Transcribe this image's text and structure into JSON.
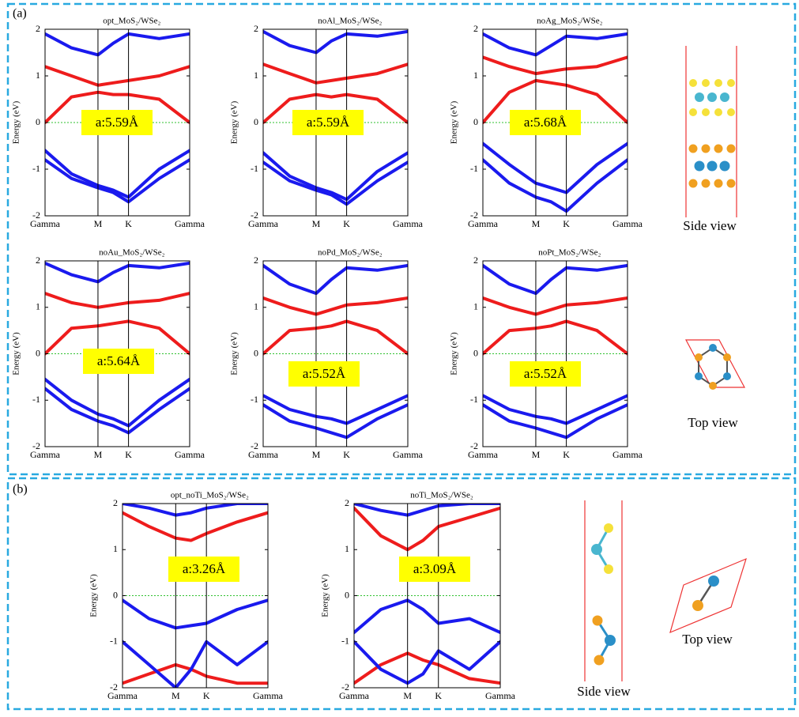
{
  "panel_labels": [
    "(a)",
    "(b)"
  ],
  "structure_labels": [
    "Side view",
    "Top view",
    "Side view",
    "Top view"
  ],
  "chart_data": [
    {
      "type": "line",
      "title": "opt_MoS₂/WSe₂",
      "ylabel": "Energy (eV)",
      "annotation": "a:5.59Å",
      "hline": 0,
      "x": [
        0,
        0.289,
        0.577,
        0.744,
        0.91,
        1.244,
        1.577
      ],
      "xlim": [
        0,
        1.577
      ],
      "ylim": [
        -2,
        2
      ],
      "yticks": [
        -2,
        -1,
        0,
        1,
        2
      ],
      "xticks": [
        {
          "value": 0,
          "label": "Gamma"
        },
        {
          "value": 0.577,
          "label": "M"
        },
        {
          "value": 0.91,
          "label": "K"
        },
        {
          "value": 1.577,
          "label": "Gamma"
        }
      ],
      "series": [
        {
          "color": "#ee1c1c",
          "values": [
            0,
            0.55,
            0.65,
            0.6,
            0.6,
            0.5,
            0
          ]
        },
        {
          "color": "#ee1c1c",
          "values": [
            1.2,
            1.0,
            0.8,
            0.85,
            0.9,
            1.0,
            1.2
          ]
        },
        {
          "color": "#1a1aee",
          "values": [
            1.9,
            1.6,
            1.45,
            1.7,
            1.9,
            1.8,
            1.9
          ]
        },
        {
          "color": "#1a1aee",
          "values": [
            -0.6,
            -1.1,
            -1.35,
            -1.45,
            -1.6,
            -1.0,
            -0.6
          ]
        },
        {
          "color": "#1a1aee",
          "values": [
            -0.8,
            -1.2,
            -1.4,
            -1.5,
            -1.7,
            -1.2,
            -0.8
          ]
        }
      ]
    },
    {
      "type": "line",
      "title": "noAl_MoS₂/WSe₂",
      "ylabel": "Energy (eV)",
      "annotation": "a:5.59Å",
      "hline": 0,
      "x": [
        0,
        0.289,
        0.577,
        0.744,
        0.91,
        1.244,
        1.577
      ],
      "xlim": [
        0,
        1.577
      ],
      "ylim": [
        -2,
        2
      ],
      "yticks": [
        -2,
        -1,
        0,
        1,
        2
      ],
      "xticks": [
        {
          "value": 0,
          "label": "Gamma"
        },
        {
          "value": 0.577,
          "label": "M"
        },
        {
          "value": 0.91,
          "label": "K"
        },
        {
          "value": 1.577,
          "label": "Gamma"
        }
      ],
      "series": [
        {
          "color": "#ee1c1c",
          "values": [
            0,
            0.5,
            0.6,
            0.55,
            0.6,
            0.5,
            0
          ]
        },
        {
          "color": "#ee1c1c",
          "values": [
            1.25,
            1.05,
            0.85,
            0.9,
            0.95,
            1.05,
            1.25
          ]
        },
        {
          "color": "#1a1aee",
          "values": [
            1.95,
            1.65,
            1.5,
            1.75,
            1.9,
            1.85,
            1.95
          ]
        },
        {
          "color": "#1a1aee",
          "values": [
            -0.65,
            -1.15,
            -1.4,
            -1.5,
            -1.65,
            -1.05,
            -0.65
          ]
        },
        {
          "color": "#1a1aee",
          "values": [
            -0.85,
            -1.25,
            -1.45,
            -1.55,
            -1.75,
            -1.25,
            -0.85
          ]
        }
      ]
    },
    {
      "type": "line",
      "title": "noAg_MoS₂/WSe₂",
      "ylabel": "Energy (eV)",
      "annotation": "a:5.68Å",
      "hline": 0,
      "x": [
        0,
        0.289,
        0.577,
        0.744,
        0.91,
        1.244,
        1.577
      ],
      "xlim": [
        0,
        1.577
      ],
      "ylim": [
        -2,
        2
      ],
      "yticks": [
        -2,
        -1,
        0,
        1,
        2
      ],
      "xticks": [
        {
          "value": 0,
          "label": "Gamma"
        },
        {
          "value": 0.577,
          "label": "M"
        },
        {
          "value": 0.91,
          "label": "K"
        },
        {
          "value": 1.577,
          "label": "Gamma"
        }
      ],
      "series": [
        {
          "color": "#ee1c1c",
          "values": [
            0,
            0.65,
            0.9,
            0.85,
            0.8,
            0.6,
            0
          ]
        },
        {
          "color": "#ee1c1c",
          "values": [
            1.4,
            1.2,
            1.05,
            1.1,
            1.15,
            1.2,
            1.4
          ]
        },
        {
          "color": "#1a1aee",
          "values": [
            1.9,
            1.6,
            1.45,
            1.65,
            1.85,
            1.8,
            1.9
          ]
        },
        {
          "color": "#1a1aee",
          "values": [
            -0.45,
            -0.9,
            -1.3,
            -1.4,
            -1.5,
            -0.9,
            -0.45
          ]
        },
        {
          "color": "#1a1aee",
          "values": [
            -0.8,
            -1.3,
            -1.6,
            -1.7,
            -1.9,
            -1.3,
            -0.8
          ]
        }
      ]
    },
    {
      "type": "line",
      "title": "noAu_MoS₂/WSe₂",
      "ylabel": "Energy (eV)",
      "annotation": "a:5.64Å",
      "hline": 0,
      "x": [
        0,
        0.289,
        0.577,
        0.744,
        0.91,
        1.244,
        1.577
      ],
      "xlim": [
        0,
        1.577
      ],
      "ylim": [
        -2,
        2
      ],
      "yticks": [
        -2,
        -1,
        0,
        1,
        2
      ],
      "xticks": [
        {
          "value": 0,
          "label": "Gamma"
        },
        {
          "value": 0.577,
          "label": "M"
        },
        {
          "value": 0.91,
          "label": "K"
        },
        {
          "value": 1.577,
          "label": "Gamma"
        }
      ],
      "series": [
        {
          "color": "#ee1c1c",
          "values": [
            0,
            0.55,
            0.6,
            0.65,
            0.7,
            0.55,
            0
          ]
        },
        {
          "color": "#ee1c1c",
          "values": [
            1.3,
            1.1,
            1.0,
            1.05,
            1.1,
            1.15,
            1.3
          ]
        },
        {
          "color": "#1a1aee",
          "values": [
            1.95,
            1.7,
            1.55,
            1.75,
            1.9,
            1.85,
            1.95
          ]
        },
        {
          "color": "#1a1aee",
          "values": [
            -0.55,
            -1.0,
            -1.3,
            -1.4,
            -1.55,
            -1.0,
            -0.55
          ]
        },
        {
          "color": "#1a1aee",
          "values": [
            -0.75,
            -1.2,
            -1.45,
            -1.55,
            -1.7,
            -1.2,
            -0.75
          ]
        }
      ]
    },
    {
      "type": "line",
      "title": "noPd_MoS₂/WSe₂",
      "ylabel": "Energy (eV)",
      "annotation": "a:5.52Å",
      "hline": 0,
      "x": [
        0,
        0.289,
        0.577,
        0.744,
        0.91,
        1.244,
        1.577
      ],
      "xlim": [
        0,
        1.577
      ],
      "ylim": [
        -2,
        2
      ],
      "yticks": [
        -2,
        -1,
        0,
        1,
        2
      ],
      "xticks": [
        {
          "value": 0,
          "label": "Gamma"
        },
        {
          "value": 0.577,
          "label": "M"
        },
        {
          "value": 0.91,
          "label": "K"
        },
        {
          "value": 1.577,
          "label": "Gamma"
        }
      ],
      "series": [
        {
          "color": "#ee1c1c",
          "values": [
            0,
            0.5,
            0.55,
            0.6,
            0.7,
            0.5,
            0
          ]
        },
        {
          "color": "#ee1c1c",
          "values": [
            1.2,
            1.0,
            0.85,
            0.95,
            1.05,
            1.1,
            1.2
          ]
        },
        {
          "color": "#1a1aee",
          "values": [
            1.9,
            1.5,
            1.3,
            1.6,
            1.85,
            1.8,
            1.9
          ]
        },
        {
          "color": "#1a1aee",
          "values": [
            -0.9,
            -1.2,
            -1.35,
            -1.4,
            -1.5,
            -1.2,
            -0.9
          ]
        },
        {
          "color": "#1a1aee",
          "values": [
            -1.1,
            -1.45,
            -1.6,
            -1.7,
            -1.8,
            -1.4,
            -1.1
          ]
        }
      ]
    },
    {
      "type": "line",
      "title": "noPt_MoS₂/WSe₂",
      "ylabel": "Energy (eV)",
      "annotation": "a:5.52Å",
      "hline": 0,
      "x": [
        0,
        0.289,
        0.577,
        0.744,
        0.91,
        1.244,
        1.577
      ],
      "xlim": [
        0,
        1.577
      ],
      "ylim": [
        -2,
        2
      ],
      "yticks": [
        -2,
        -1,
        0,
        1,
        2
      ],
      "xticks": [
        {
          "value": 0,
          "label": "Gamma"
        },
        {
          "value": 0.577,
          "label": "M"
        },
        {
          "value": 0.91,
          "label": "K"
        },
        {
          "value": 1.577,
          "label": "Gamma"
        }
      ],
      "series": [
        {
          "color": "#ee1c1c",
          "values": [
            0,
            0.5,
            0.55,
            0.6,
            0.7,
            0.5,
            0
          ]
        },
        {
          "color": "#ee1c1c",
          "values": [
            1.2,
            1.0,
            0.85,
            0.95,
            1.05,
            1.1,
            1.2
          ]
        },
        {
          "color": "#1a1aee",
          "values": [
            1.9,
            1.5,
            1.3,
            1.6,
            1.85,
            1.8,
            1.9
          ]
        },
        {
          "color": "#1a1aee",
          "values": [
            -0.9,
            -1.2,
            -1.35,
            -1.4,
            -1.5,
            -1.2,
            -0.9
          ]
        },
        {
          "color": "#1a1aee",
          "values": [
            -1.1,
            -1.45,
            -1.6,
            -1.7,
            -1.8,
            -1.4,
            -1.1
          ]
        }
      ]
    },
    {
      "type": "line",
      "title": "opt_noTi_MoS₂/WSe₂",
      "ylabel": "Energy (eV)",
      "annotation": "a:3.26Å",
      "hline": 0,
      "x": [
        0,
        0.289,
        0.577,
        0.744,
        0.91,
        1.244,
        1.577
      ],
      "xlim": [
        0,
        1.577
      ],
      "ylim": [
        -2,
        2
      ],
      "yticks": [
        -2,
        -1,
        0,
        1,
        2
      ],
      "xticks": [
        {
          "value": 0,
          "label": "Gamma"
        },
        {
          "value": 0.577,
          "label": "M"
        },
        {
          "value": 0.91,
          "label": "K"
        },
        {
          "value": 1.577,
          "label": "Gamma"
        }
      ],
      "series": [
        {
          "color": "#ee1c1c",
          "values": [
            1.8,
            1.5,
            1.25,
            1.2,
            1.35,
            1.6,
            1.8
          ]
        },
        {
          "color": "#ee1c1c",
          "values": [
            -1.9,
            -1.7,
            -1.5,
            -1.6,
            -1.75,
            -1.9,
            -1.9
          ]
        },
        {
          "color": "#1a1aee",
          "values": [
            2,
            1.9,
            1.75,
            1.8,
            1.9,
            2,
            2
          ]
        },
        {
          "color": "#1a1aee",
          "values": [
            -0.1,
            -0.5,
            -0.7,
            -0.65,
            -0.6,
            -0.3,
            -0.1
          ]
        },
        {
          "color": "#1a1aee",
          "values": [
            -1.0,
            -1.5,
            -2.0,
            -1.6,
            -1.0,
            -1.5,
            -1.0
          ]
        }
      ]
    },
    {
      "type": "line",
      "title": "noTi_MoS₂/WSe₂",
      "ylabel": "Energy (eV)",
      "annotation": "a:3.09Å",
      "hline": 0,
      "x": [
        0,
        0.289,
        0.577,
        0.744,
        0.91,
        1.244,
        1.577
      ],
      "xlim": [
        0,
        1.577
      ],
      "ylim": [
        -2,
        2
      ],
      "yticks": [
        -2,
        -1,
        0,
        1,
        2
      ],
      "xticks": [
        {
          "value": 0,
          "label": "Gamma"
        },
        {
          "value": 0.577,
          "label": "M"
        },
        {
          "value": 0.91,
          "label": "K"
        },
        {
          "value": 1.577,
          "label": "Gamma"
        }
      ],
      "series": [
        {
          "color": "#ee1c1c",
          "values": [
            1.9,
            1.3,
            1.0,
            1.2,
            1.5,
            1.7,
            1.9
          ]
        },
        {
          "color": "#ee1c1c",
          "values": [
            -1.9,
            -1.5,
            -1.25,
            -1.4,
            -1.5,
            -1.8,
            -1.9
          ]
        },
        {
          "color": "#1a1aee",
          "values": [
            2,
            1.85,
            1.75,
            1.85,
            1.95,
            2,
            2
          ]
        },
        {
          "color": "#1a1aee",
          "values": [
            -0.8,
            -0.3,
            -0.1,
            -0.3,
            -0.6,
            -0.5,
            -0.8
          ]
        },
        {
          "color": "#1a1aee",
          "values": [
            -1.0,
            -1.6,
            -1.9,
            -1.7,
            -1.2,
            -1.6,
            -1.0
          ]
        }
      ]
    }
  ]
}
